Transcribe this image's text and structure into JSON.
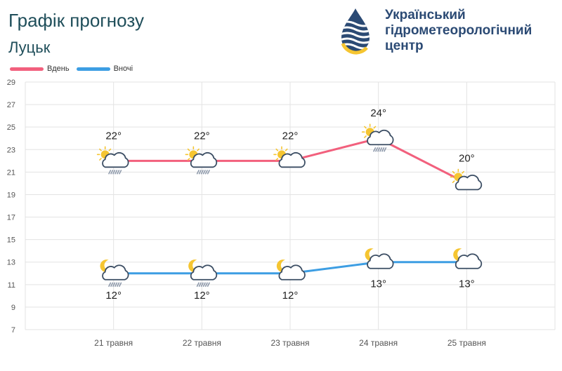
{
  "header": {
    "title": "Графік прогнозу",
    "city": "Луцьк",
    "org_name_line1": "Український",
    "org_name_line2": "гідрометеорологічний",
    "org_name_line3": "центр"
  },
  "colors": {
    "day": "#f2607d",
    "night": "#3d9ee3",
    "grid": "#e3e3e3",
    "text": "#333333",
    "sun": "#f5c531",
    "cloud_stroke": "#3b4d63"
  },
  "chart_data": {
    "type": "line",
    "categories": [
      "21 травня",
      "22 травня",
      "23 травня",
      "24 травня",
      "25 травня"
    ],
    "series": [
      {
        "name": "Вдень",
        "values": [
          22,
          22,
          22,
          24,
          20
        ],
        "labels": [
          "22°",
          "22°",
          "22°",
          "24°",
          "20°"
        ],
        "icons": [
          "sun-cloud-rain-icon",
          "sun-cloud-rain-icon",
          "sun-cloud-icon",
          "sun-cloud-rain-icon",
          "sun-cloud-icon"
        ]
      },
      {
        "name": "Вночі",
        "values": [
          12,
          12,
          12,
          13,
          13
        ],
        "labels": [
          "12°",
          "12°",
          "12°",
          "13°",
          "13°"
        ],
        "icons": [
          "moon-cloud-rain-icon",
          "moon-cloud-rain-icon",
          "moon-cloud-icon",
          "moon-cloud-icon",
          "moon-cloud-icon"
        ]
      }
    ],
    "yticks": [
      "29",
      "27",
      "25",
      "23",
      "21",
      "19",
      "17",
      "15",
      "13",
      "11",
      "9",
      "7"
    ],
    "ylim": [
      7,
      29
    ],
    "grid": true,
    "legend_position": "top-left"
  }
}
